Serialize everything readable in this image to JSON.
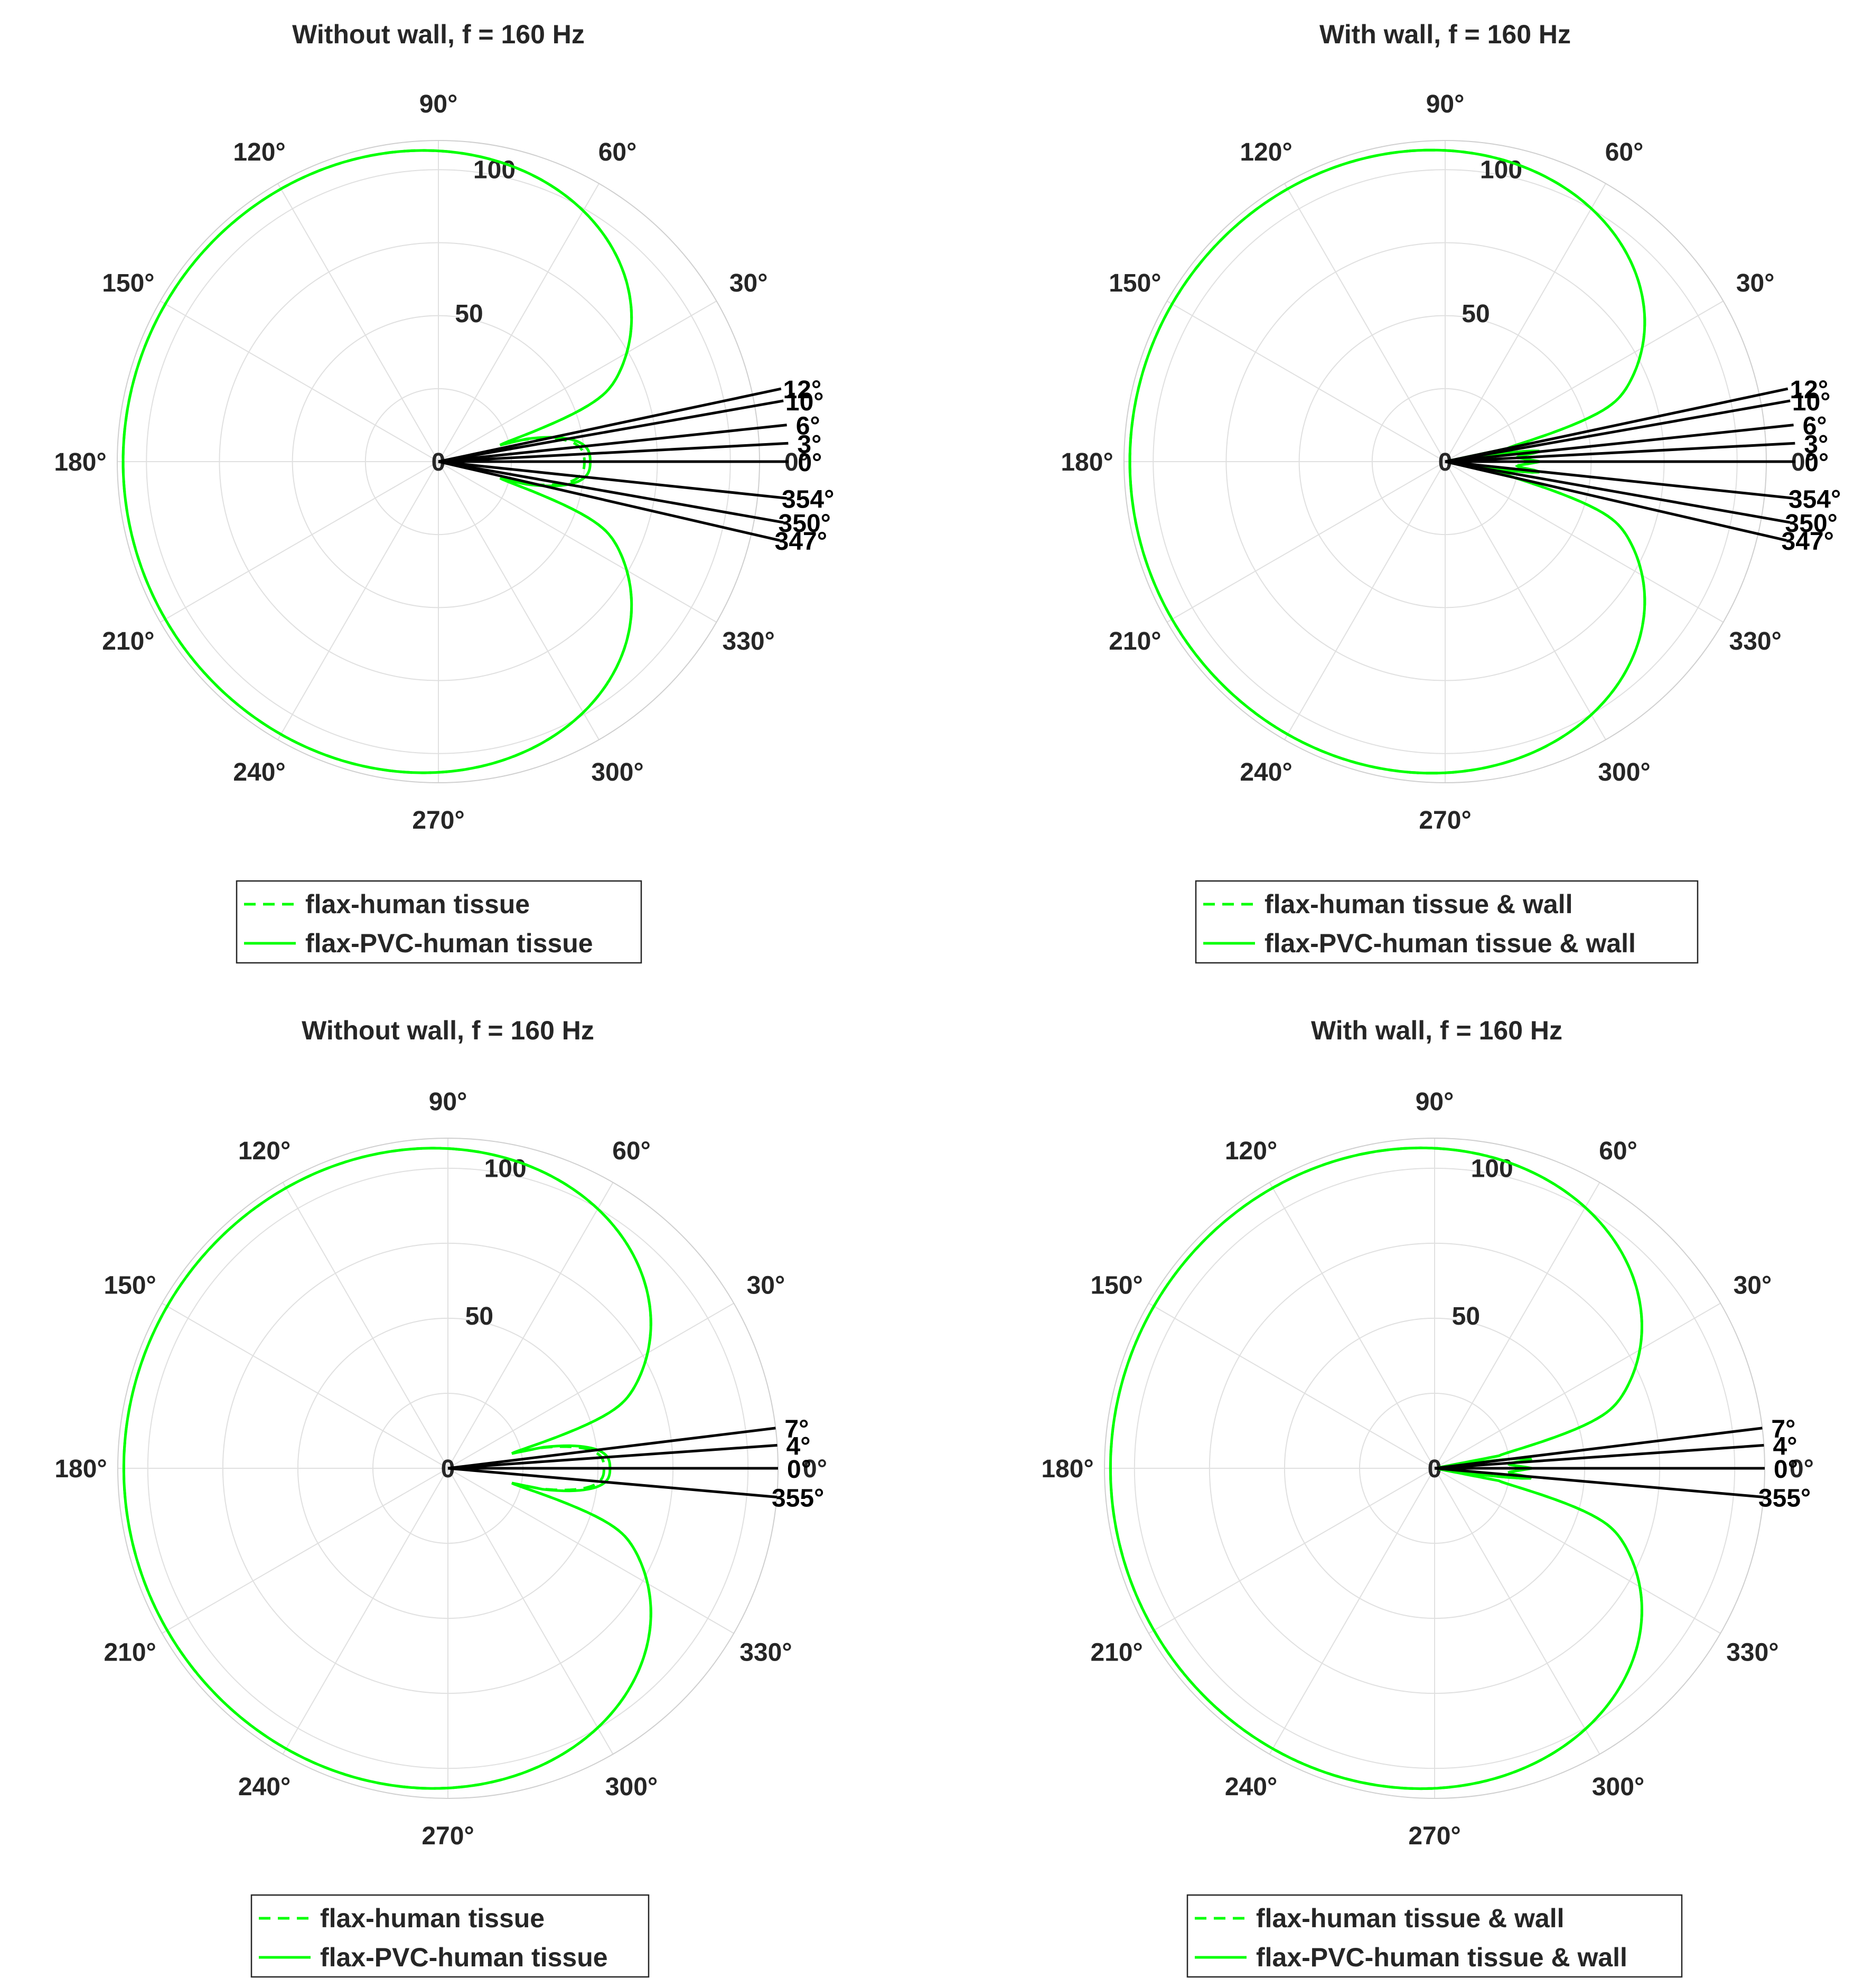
{
  "chart_data": [
    {
      "type": "polar",
      "title": "Without wall, f = 160 Hz",
      "angle_ticks": [
        "0°",
        "30°",
        "60°",
        "90°",
        "120°",
        "150°",
        "180°",
        "210°",
        "240°",
        "270°",
        "300°",
        "330°"
      ],
      "rlim": [
        0,
        110
      ],
      "r_ticks": [
        "0",
        "50",
        "100"
      ],
      "grid": true,
      "legend_placement": "bottom",
      "direction_lines": {
        "angles_deg": [
          12,
          10,
          6,
          3,
          0,
          354,
          350,
          347
        ],
        "labels": [
          "12°",
          "10°",
          "6°",
          "3°",
          "0°",
          "354°",
          "350°",
          "347°"
        ],
        "length": 120
      },
      "series": [
        {
          "name": "flax-human tissue",
          "style": "dashed",
          "color": "#00ff00",
          "notch_deg": 15,
          "notch_r": 50,
          "wall": false
        },
        {
          "name": "flax-PVC-human tissue",
          "style": "solid",
          "color": "#00ff00",
          "notch_deg": 15,
          "notch_r": 52,
          "wall": false
        }
      ],
      "peak_r": 108
    },
    {
      "type": "polar",
      "title": "With wall, f = 160 Hz",
      "angle_ticks": [
        "0°",
        "30°",
        "60°",
        "90°",
        "120°",
        "150°",
        "180°",
        "210°",
        "240°",
        "270°",
        "300°",
        "330°"
      ],
      "rlim": [
        0,
        110
      ],
      "r_ticks": [
        "0",
        "50",
        "100"
      ],
      "grid": true,
      "legend_placement": "bottom",
      "direction_lines": {
        "angles_deg": [
          12,
          10,
          6,
          3,
          0,
          354,
          350,
          347
        ],
        "labels": [
          "12°",
          "10°",
          "6°",
          "3°",
          "0°",
          "354°",
          "350°",
          "347°"
        ],
        "length": 120
      },
      "series": [
        {
          "name": "flax-human tissue & wall",
          "style": "dashed",
          "color": "#00ff00",
          "notch_deg": 12,
          "notch_r": 50,
          "wall": true
        },
        {
          "name": "flax-PVC-human tissue & wall",
          "style": "solid",
          "color": "#00ff00",
          "notch_deg": 12,
          "notch_r": 52,
          "wall": true
        }
      ],
      "peak_r": 108
    },
    {
      "type": "polar",
      "title": "Without wall, f = 160 Hz",
      "angle_ticks": [
        "0°",
        "30°",
        "60°",
        "90°",
        "120°",
        "150°",
        "180°",
        "210°",
        "240°",
        "270°",
        "300°",
        "330°"
      ],
      "rlim": [
        0,
        110
      ],
      "r_ticks": [
        "0",
        "50",
        "100"
      ],
      "grid": true,
      "legend_placement": "bottom",
      "direction_lines": {
        "angles_deg": [
          7,
          4,
          0,
          355
        ],
        "labels": [
          "7°",
          "4°",
          "0°",
          "355°"
        ],
        "length": 110
      },
      "series": [
        {
          "name": "flax-human tissue",
          "style": "dashed",
          "color": "#00ff00",
          "notch_deg": 13,
          "notch_r": 52,
          "wall": false
        },
        {
          "name": "flax-PVC-human tissue",
          "style": "solid",
          "color": "#00ff00",
          "notch_deg": 13,
          "notch_r": 54,
          "wall": false
        }
      ],
      "peak_r": 108
    },
    {
      "type": "polar",
      "title": "With wall, f = 160 Hz",
      "angle_ticks": [
        "0°",
        "30°",
        "60°",
        "90°",
        "120°",
        "150°",
        "180°",
        "210°",
        "240°",
        "270°",
        "300°",
        "330°"
      ],
      "rlim": [
        0,
        110
      ],
      "r_ticks": [
        "0",
        "50",
        "100"
      ],
      "grid": true,
      "legend_placement": "bottom",
      "direction_lines": {
        "angles_deg": [
          7,
          4,
          0,
          355
        ],
        "labels": [
          "7°",
          "4°",
          "0°",
          "355°"
        ],
        "length": 110
      },
      "series": [
        {
          "name": "flax-human tissue & wall",
          "style": "dashed",
          "color": "#00ff00",
          "notch_deg": 11,
          "notch_r": 50,
          "wall": true
        },
        {
          "name": "flax-PVC-human tissue & wall",
          "style": "solid",
          "color": "#00ff00",
          "notch_deg": 11,
          "notch_r": 52,
          "wall": true
        }
      ],
      "peak_r": 108
    }
  ],
  "colors": {
    "curve": "#00ff00",
    "direction_line": "#000000",
    "grid": "#e0e0e0",
    "text": "#262626"
  }
}
